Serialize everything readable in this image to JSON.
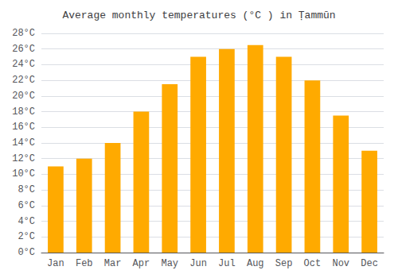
{
  "chart_data": {
    "type": "bar",
    "title": "Average monthly temperatures (°C ) in Ṭammūn",
    "categories": [
      "Jan",
      "Feb",
      "Mar",
      "Apr",
      "May",
      "Jun",
      "Jul",
      "Aug",
      "Sep",
      "Oct",
      "Nov",
      "Dec"
    ],
    "values": [
      11.0,
      12.0,
      14.0,
      18.0,
      21.5,
      25.0,
      26.0,
      26.5,
      25.0,
      22.0,
      17.5,
      13.0
    ],
    "color": "#FFAA00",
    "ylim": [
      0,
      28
    ],
    "yticks": [
      {
        "value": 0,
        "label": "0°C"
      },
      {
        "value": 2,
        "label": "2°C"
      },
      {
        "value": 4,
        "label": "4°C"
      },
      {
        "value": 6,
        "label": "6°C"
      },
      {
        "value": 8,
        "label": "8°C"
      },
      {
        "value": 10,
        "label": "10°C"
      },
      {
        "value": 12,
        "label": "12°C"
      },
      {
        "value": 14,
        "label": "14°C"
      },
      {
        "value": 16,
        "label": "16°C"
      },
      {
        "value": 18,
        "label": "18°C"
      },
      {
        "value": 20,
        "label": "20°C"
      },
      {
        "value": 22,
        "label": "22°C"
      },
      {
        "value": 24,
        "label": "24°C"
      },
      {
        "value": 26,
        "label": "26°C"
      },
      {
        "value": 28,
        "label": "28°C"
      }
    ],
    "grid": true
  }
}
